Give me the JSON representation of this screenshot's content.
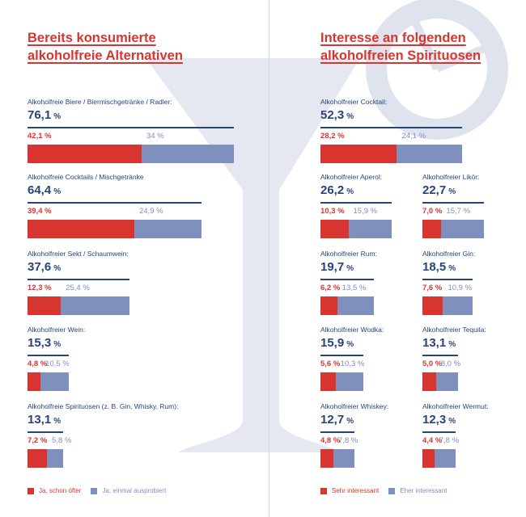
{
  "colors": {
    "red": "#d93530",
    "blue": "#7f8fbe",
    "navy": "#27457c"
  },
  "chart_data": [
    {
      "type": "bar",
      "orientation": "horizontal-stacked",
      "title_lines": [
        "Bereits konsumierte",
        "alkoholfreie Alternativen"
      ],
      "legend": [
        "Ja, schon öfter",
        "Ja, einmal ausprobiert"
      ],
      "categories": [
        {
          "label": "Alkoholfreie Biere / Biermischgetränke / Radler:",
          "total": "76,1",
          "red": 42.1,
          "blue": 34,
          "red_label": "42,1 %",
          "blue_label": "34 %"
        },
        {
          "label": "Alkoholfreie Cocktails / Mischgetränke",
          "total": "64,4",
          "red": 39.4,
          "blue": 24.9,
          "red_label": "39,4 %",
          "blue_label": "24,9 %"
        },
        {
          "label": "Alkoholfreier Sekt / Schaumwein:",
          "total": "37,6",
          "red": 12.3,
          "blue": 25.4,
          "red_label": "12,3 %",
          "blue_label": "25,4 %"
        },
        {
          "label": "Alkoholfreier Wein:",
          "total": "15,3",
          "red": 4.8,
          "blue": 10.5,
          "red_label": "4,8 %",
          "blue_label": "10,5 %"
        },
        {
          "label": "Alkoholfreie Spirituosen (z. B. Gin, Whisky, Rum):",
          "total": "13,1",
          "red": 7.2,
          "blue": 5.8,
          "red_label": "7,2 %",
          "blue_label": "5,8 %"
        }
      ]
    },
    {
      "type": "bar",
      "orientation": "horizontal-stacked",
      "title_lines": [
        "Interesse an folgenden",
        "alkoholfreien Spirituosen"
      ],
      "legend": [
        "Sehr interessant",
        "Eher interessant"
      ],
      "categories": [
        {
          "label": "Alkoholfreier Cocktail:",
          "total": "52,3",
          "red": 28.2,
          "blue": 24.1,
          "red_label": "28,2 %",
          "blue_label": "24,1 %"
        },
        {
          "label": "Alkoholfreier Aperol:",
          "total": "26,2",
          "red": 10.3,
          "blue": 15.9,
          "red_label": "10,3 %",
          "blue_label": "15,9 %"
        },
        {
          "label": "Alkoholfreier Likör:",
          "total": "22,7",
          "red": 7.0,
          "blue": 15.7,
          "red_label": "7,0 %",
          "blue_label": "15,7 %"
        },
        {
          "label": "Alkoholfreier Rum:",
          "total": "19,7",
          "red": 6.2,
          "blue": 13.5,
          "red_label": "6,2 %",
          "blue_label": "13,5 %"
        },
        {
          "label": "Alkoholfreier Gin:",
          "total": "18,5",
          "red": 7.6,
          "blue": 10.9,
          "red_label": "7,6 %",
          "blue_label": "10,9 %"
        },
        {
          "label": "Alkoholfreier Wodka:",
          "total": "15,9",
          "red": 5.6,
          "blue": 10.3,
          "red_label": "5,6 %",
          "blue_label": "10,3 %"
        },
        {
          "label": "Alkoholfreier Tequila:",
          "total": "13,1",
          "red": 5.0,
          "blue": 8.0,
          "red_label": "5,0 %",
          "blue_label": "8,0 %"
        },
        {
          "label": "Alkoholfreier Whiskey:",
          "total": "12,7",
          "red": 4.8,
          "blue": 7.8,
          "red_label": "4,8 %",
          "blue_label": "7,8 %"
        },
        {
          "label": "Alkoholfreier Wermut:",
          "total": "12,3",
          "red": 4.4,
          "blue": 7.8,
          "red_label": "4,4 %",
          "blue_label": "7,8 %"
        }
      ]
    }
  ],
  "total_unit": "%"
}
